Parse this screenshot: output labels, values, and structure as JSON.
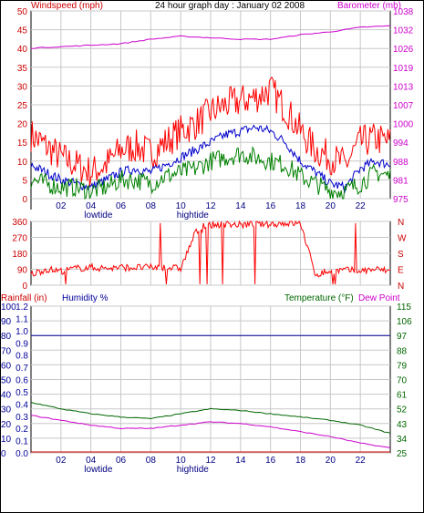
{
  "chart_data": [
    {
      "type": "line",
      "title": "24 hour graph day : January 02 2008",
      "left_axis_label": "Windspeed (mph)",
      "right_axis_label": "Barometer (mb)",
      "left_ticks": [
        "0",
        "5",
        "10",
        "15",
        "20",
        "25",
        "30",
        "35",
        "40",
        "45",
        "50"
      ],
      "right_ticks": [
        "975",
        "981",
        "988",
        "994",
        "1000",
        "1007",
        "1013",
        "1019",
        "1026",
        "1032",
        "1038"
      ],
      "ylim_left": [
        0,
        50
      ],
      "ylim_right": [
        975,
        1038
      ],
      "x_ticks": [
        "02",
        "04",
        "06",
        "08",
        "10",
        "12",
        "14",
        "16",
        "18",
        "20",
        "22"
      ],
      "tide_labels": [
        {
          "text": "lowtide",
          "hour": 4.5
        },
        {
          "text": "hightide",
          "hour": 10.8
        }
      ],
      "colors": {
        "gust": "#ff0000",
        "average": "#0000cc",
        "wind": "#008000",
        "barometer": "#cc00cc",
        "axis_left": "#cc0000",
        "axis_right": "#cc00cc"
      },
      "series": [
        {
          "key": "gust",
          "color": "#ff0000",
          "hours": [
            0,
            1,
            2,
            3,
            4,
            5,
            6,
            7,
            8,
            9,
            10,
            11,
            12,
            13,
            14,
            15,
            16,
            17,
            18,
            19,
            20,
            21,
            22,
            23,
            24
          ],
          "values": [
            17,
            14,
            11,
            9,
            7,
            9,
            13,
            14,
            12,
            15,
            18,
            20,
            23,
            25,
            26,
            27,
            29,
            24,
            18,
            13,
            11,
            9,
            15,
            16,
            15
          ]
        },
        {
          "key": "average",
          "color": "#0000cc",
          "hours": [
            0,
            1,
            2,
            3,
            4,
            5,
            6,
            7,
            8,
            9,
            10,
            11,
            12,
            13,
            14,
            15,
            16,
            17,
            18,
            19,
            20,
            21,
            22,
            23,
            24
          ],
          "values": [
            9,
            7,
            5,
            4,
            3,
            5,
            7,
            8,
            7,
            9,
            11,
            13,
            15,
            17,
            18,
            19,
            18,
            15,
            10,
            7,
            4,
            3,
            8,
            10,
            9
          ]
        },
        {
          "key": "wind",
          "color": "#008000",
          "hours": [
            0,
            1,
            2,
            3,
            4,
            5,
            6,
            7,
            8,
            9,
            10,
            11,
            12,
            13,
            14,
            15,
            16,
            17,
            18,
            19,
            20,
            21,
            22,
            23,
            24
          ],
          "values": [
            5,
            4,
            3,
            3,
            2,
            3,
            5,
            5,
            4,
            6,
            7,
            8,
            10,
            11,
            12,
            11,
            10,
            9,
            6,
            4,
            2,
            2,
            4,
            7,
            6
          ]
        },
        {
          "key": "barometer",
          "color": "#cc00cc",
          "axis": "right",
          "hours": [
            0,
            2,
            4,
            6,
            8,
            10,
            12,
            14,
            16,
            18,
            20,
            22,
            24
          ],
          "values": [
            1025.5,
            1026,
            1026.5,
            1027,
            1028.5,
            1029.5,
            1029,
            1028.5,
            1028.5,
            1030,
            1031,
            1032.5,
            1033
          ]
        }
      ]
    },
    {
      "type": "line",
      "left_ticks": [
        "0",
        "90",
        "180",
        "270",
        "360"
      ],
      "right_ticks": [
        "N",
        "E",
        "S",
        "W",
        "N"
      ],
      "ylim": [
        0,
        360
      ],
      "colors": {
        "direction": "#ff0000",
        "axis": "#cc0000"
      },
      "series": [
        {
          "key": "wind_direction",
          "color": "#ff0000",
          "hours": [
            0,
            1,
            2,
            3,
            4,
            5,
            6,
            7,
            8,
            9,
            10,
            11,
            12,
            13,
            14,
            15,
            16,
            17,
            18,
            19,
            20,
            21,
            22,
            23,
            24
          ],
          "values": [
            60,
            90,
            80,
            95,
            100,
            95,
            100,
            100,
            100,
            100,
            95,
            300,
            340,
            345,
            340,
            345,
            345,
            350,
            350,
            60,
            80,
            85,
            80,
            90,
            80
          ]
        }
      ]
    },
    {
      "type": "line",
      "left_axis_label": "Rainfall (in)",
      "humidity_label": "Humidity %",
      "temperature_label": "Temperature (°F)",
      "dewpoint_label": "Dew Point",
      "rain_ticks": [
        "0.0",
        "0.1",
        "0.2",
        "0.3",
        "0.4",
        "0.5",
        "0.6",
        "0.7",
        "0.8",
        "0.9",
        "1.0",
        "1.1",
        "1.2"
      ],
      "humidity_ticks": [
        "0",
        "10",
        "20",
        "30",
        "40",
        "50",
        "60",
        "70",
        "80",
        "90",
        "100"
      ],
      "right_ticks": [
        "25",
        "34",
        "43",
        "52",
        "61",
        "70",
        "79",
        "88",
        "97",
        "106",
        "115"
      ],
      "ylim_left": [
        0,
        100
      ],
      "ylim_right": [
        25,
        115
      ],
      "x_ticks": [
        "02",
        "04",
        "06",
        "08",
        "10",
        "12",
        "14",
        "16",
        "18",
        "20",
        "22"
      ],
      "tide_labels": [
        {
          "text": "lowtide",
          "hour": 4.5
        },
        {
          "text": "hightide",
          "hour": 10.8
        }
      ],
      "colors": {
        "humidity": "#000099",
        "temperature": "#006600",
        "dewpoint": "#cc00cc",
        "rain": "#cc0000",
        "humidity_axis": "#000099",
        "temp_axis": "#006600"
      },
      "series": [
        {
          "key": "humidity",
          "color": "#000099",
          "hours": [
            0,
            24
          ],
          "values": [
            80,
            80
          ]
        },
        {
          "key": "temperature",
          "color": "#006600",
          "axis": "right",
          "hours": [
            0,
            2,
            4,
            6,
            8,
            10,
            12,
            14,
            16,
            18,
            20,
            22,
            24
          ],
          "values": [
            56,
            52,
            49,
            47,
            46,
            49,
            52,
            51,
            49,
            47,
            45,
            42,
            37
          ]
        },
        {
          "key": "dewpoint",
          "color": "#cc00cc",
          "axis": "right",
          "hours": [
            0,
            2,
            4,
            6,
            8,
            10,
            12,
            14,
            16,
            18,
            20,
            22,
            24
          ],
          "values": [
            48,
            45,
            42,
            40,
            40,
            42,
            44,
            43,
            41,
            38,
            35,
            31,
            28
          ]
        },
        {
          "key": "rainfall",
          "color": "#cc0000",
          "hours": [
            0,
            24
          ],
          "values": [
            0,
            0
          ]
        }
      ]
    }
  ]
}
